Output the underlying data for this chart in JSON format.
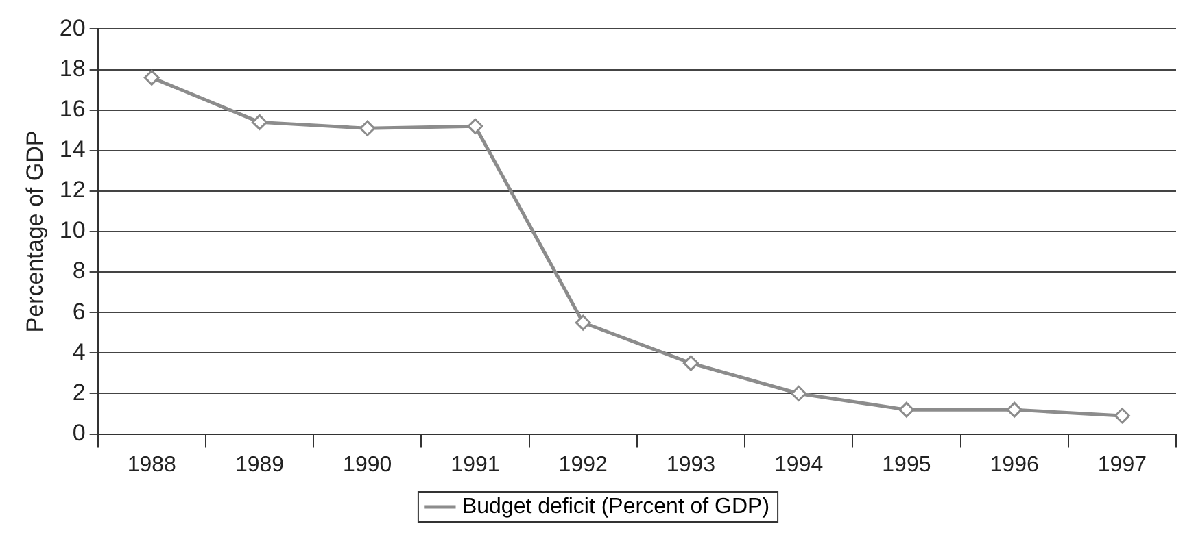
{
  "chart_data": {
    "type": "line",
    "ylabel": "Percentage of GDP",
    "categories": [
      "1988",
      "1989",
      "1990",
      "1991",
      "1992",
      "1993",
      "1994",
      "1995",
      "1996",
      "1997"
    ],
    "series": [
      {
        "name": "Budget deficit (Percent of GDP)",
        "color": "#8c8c8c",
        "values": [
          17.6,
          15.4,
          15.1,
          15.2,
          5.5,
          3.5,
          2.0,
          1.2,
          1.2,
          0.9
        ]
      }
    ],
    "ylim": [
      0,
      20
    ],
    "yticks": [
      0,
      2,
      4,
      6,
      8,
      10,
      12,
      14,
      16,
      18,
      20
    ],
    "grid": "y",
    "legend": "bottom",
    "marker": "diamond",
    "line_style": "solid"
  }
}
